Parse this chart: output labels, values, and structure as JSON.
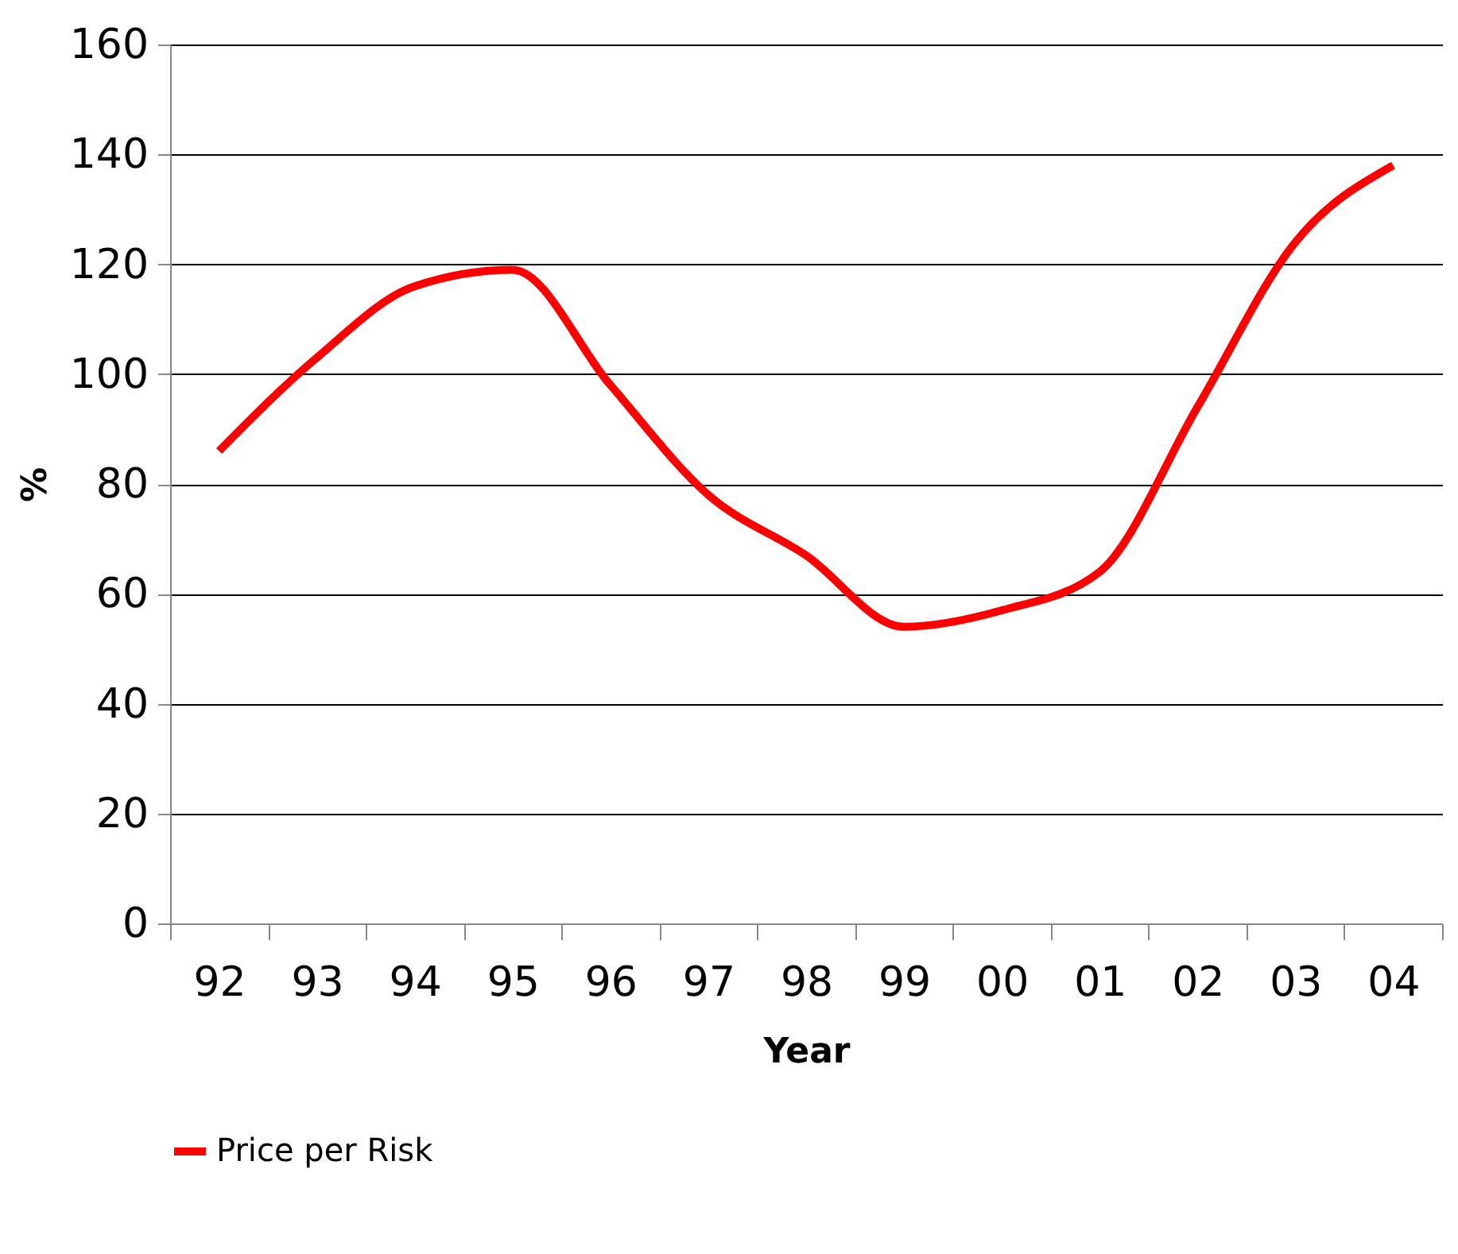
{
  "chart_data": {
    "type": "line",
    "xlabel": "Year",
    "ylabel": "%",
    "categories": [
      "92",
      "93",
      "94",
      "95",
      "96",
      "97",
      "98",
      "99",
      "00",
      "01",
      "02",
      "03",
      "04"
    ],
    "series": [
      {
        "name": "Price per Risk",
        "color": "#ff0000",
        "values": [
          86,
          103,
          116,
          119,
          98,
          78,
          67,
          54,
          57,
          64,
          94,
          124,
          138
        ]
      }
    ],
    "ylim": [
      0,
      160
    ],
    "yticks": [
      0,
      20,
      40,
      60,
      80,
      100,
      120,
      140,
      160
    ],
    "grid": "y",
    "legend": "bottom",
    "marker": "none",
    "line_style": "solid"
  }
}
